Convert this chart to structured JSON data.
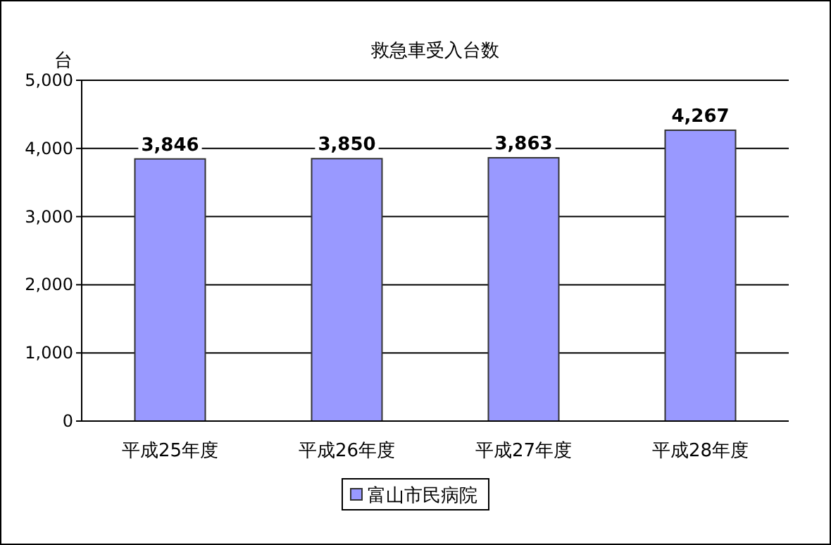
{
  "chart_data": {
    "type": "bar",
    "title": "救急車受入台数",
    "ylabel": "台",
    "categories": [
      "平成25年度",
      "平成26年度",
      "平成27年度",
      "平成28年度"
    ],
    "series": [
      {
        "name": "富山市民病院",
        "color": "#9999ff",
        "values": [
          3846,
          3850,
          3863,
          4267
        ],
        "value_labels": [
          "3,846",
          "3,850",
          "3,863",
          "4,267"
        ]
      }
    ],
    "ylim": [
      0,
      5000
    ],
    "yticks": [
      {
        "value": 0,
        "label": "0"
      },
      {
        "value": 1000,
        "label": "1,000"
      },
      {
        "value": 2000,
        "label": "2,000"
      },
      {
        "value": 3000,
        "label": "3,000"
      },
      {
        "value": 4000,
        "label": "4,000"
      },
      {
        "value": 5000,
        "label": "5,000"
      }
    ],
    "grid": "y",
    "legend": "bottom"
  }
}
